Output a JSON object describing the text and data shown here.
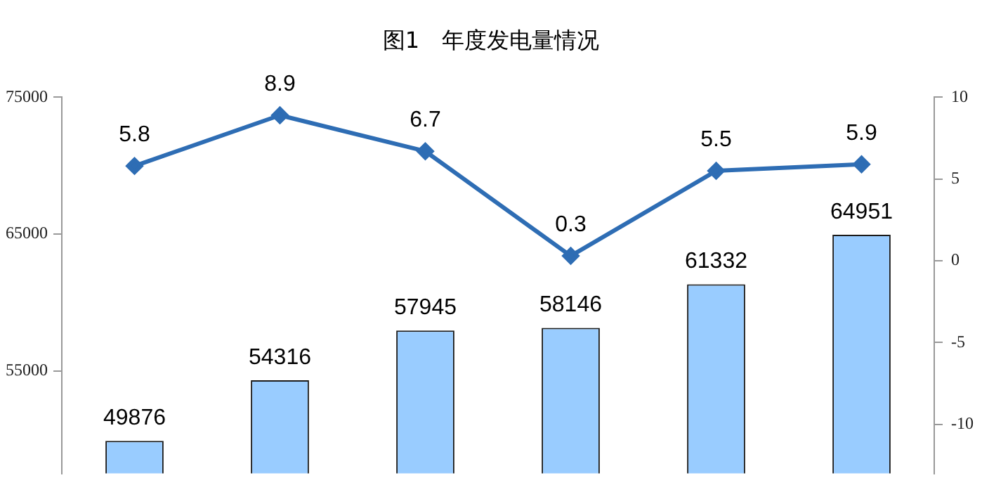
{
  "chart_data": {
    "type": "bar",
    "title": "图1　年度发电量情况",
    "categories": [
      null,
      null,
      null,
      null,
      null,
      null
    ],
    "series": [
      {
        "color": "#99ccff",
        "values": [
          49876,
          54316,
          57945,
          58146,
          61332,
          64951
        ]
      },
      {
        "type": "line",
        "axis": "y2",
        "color": "#2e6db4",
        "values": [
          5.8,
          8.9,
          6.7,
          0.3,
          5.5,
          5.9
        ]
      }
    ],
    "ylim": [
      47500,
      75000
    ],
    "yticks": [
      55000,
      65000,
      75000
    ],
    "y2lim": [
      -13,
      10
    ],
    "y2ticks": [
      -10,
      -5,
      0,
      5,
      10
    ],
    "data_labels": true,
    "grid": false,
    "legend": false,
    "marker": "diamond",
    "tick_labels": "y"
  }
}
